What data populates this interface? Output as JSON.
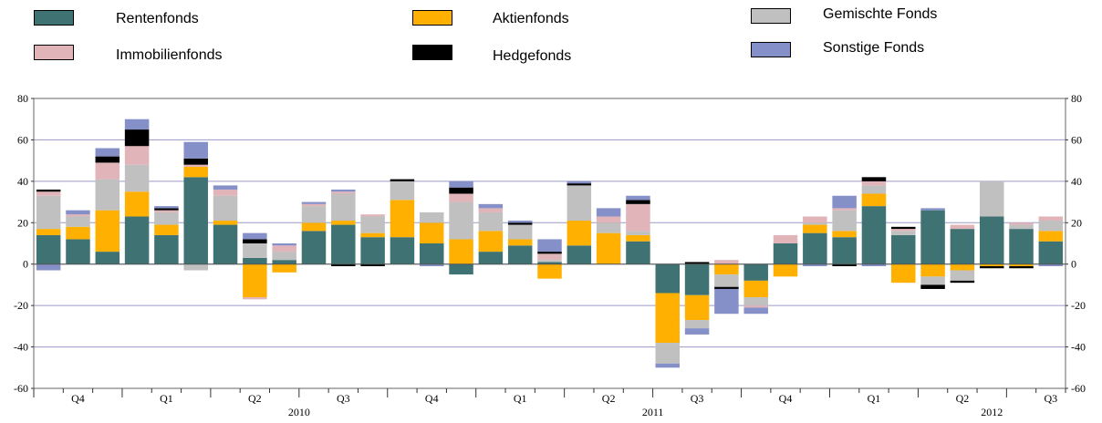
{
  "legend": {
    "items": [
      {
        "label": "Rentenfonds",
        "color": "#3f7373"
      },
      {
        "label": "Aktienfonds",
        "color": "#ffb000"
      },
      {
        "label": "Gemischte Fonds",
        "color": "#c0c0c0"
      },
      {
        "label": "Immobilienfonds",
        "color": "#e0b4b8"
      },
      {
        "label": "Hedgefonds",
        "color": "#000000"
      },
      {
        "label": "Sonstige Fonds",
        "color": "#8590c8"
      }
    ]
  },
  "chart_data": {
    "type": "bar",
    "stacked": true,
    "ylim": [
      -60,
      80
    ],
    "yticks": [
      -60,
      -40,
      -20,
      0,
      20,
      40,
      60,
      80
    ],
    "y_tick_labels": [
      "-60",
      "-40",
      "-20",
      "0",
      "20",
      "40",
      "60",
      "80"
    ],
    "grid": true,
    "legend_position": "top",
    "quarter_labels": [
      {
        "label": "Q4",
        "index": 1.5
      },
      {
        "label": "Q1",
        "index": 4.5
      },
      {
        "label": "Q2",
        "index": 7.5
      },
      {
        "label": "Q3",
        "index": 10.5
      },
      {
        "label": "Q4",
        "index": 13.5
      },
      {
        "label": "Q1",
        "index": 16.5
      },
      {
        "label": "Q2",
        "index": 19.5
      },
      {
        "label": "Q3",
        "index": 22.5
      },
      {
        "label": "Q4",
        "index": 25.5
      },
      {
        "label": "Q1",
        "index": 28.5
      },
      {
        "label": "Q2",
        "index": 31.5
      },
      {
        "label": "Q3",
        "index": 34.5
      }
    ],
    "year_labels": [
      {
        "label": "2010",
        "index": 9
      },
      {
        "label": "2011",
        "index": 21
      },
      {
        "label": "2012",
        "index": 32.5
      }
    ],
    "series": [
      {
        "name": "Rentenfonds",
        "color": "#3f7373",
        "values": [
          14,
          12,
          6,
          23,
          14,
          42,
          19,
          3,
          2,
          16,
          19,
          13,
          13,
          10,
          -5,
          6,
          9,
          1,
          9,
          0,
          11,
          -14,
          -15,
          0,
          -8,
          10,
          15,
          13,
          28,
          14,
          26,
          17,
          23,
          17,
          11
        ]
      },
      {
        "name": "Aktienfonds",
        "color": "#ffb000",
        "values": [
          3,
          6,
          20,
          12,
          5,
          5,
          2,
          -16,
          -4,
          4,
          2,
          2,
          18,
          10,
          12,
          10,
          3,
          -7,
          12,
          15,
          3,
          -24,
          -12,
          -5,
          -8,
          -6,
          4,
          3,
          6,
          -9,
          -6,
          -3,
          -1,
          -1,
          5
        ]
      },
      {
        "name": "Gemischte Fonds",
        "color": "#c0c0c0",
        "values": [
          16,
          5,
          15,
          13,
          6,
          -3,
          12,
          7,
          4,
          8,
          13,
          8,
          9,
          5,
          18,
          9,
          7,
          1,
          17,
          5,
          2,
          -10,
          -4,
          -6,
          -4,
          0,
          1,
          10,
          4,
          2,
          -4,
          -5,
          17,
          2,
          5
        ]
      },
      {
        "name": "Immobilienfonds",
        "color": "#e0b4b8",
        "values": [
          2,
          1,
          8,
          9,
          1,
          1,
          3,
          -1,
          3,
          1,
          1,
          1,
          0,
          0,
          4,
          2,
          0,
          3,
          0,
          3,
          13,
          0,
          0,
          2,
          -1,
          4,
          3,
          1,
          2,
          1,
          0,
          2,
          0,
          1,
          2
        ]
      },
      {
        "name": "Hedgefonds",
        "color": "#000000",
        "values": [
          1,
          0,
          3,
          8,
          1,
          3,
          0,
          2,
          0,
          0,
          -1,
          -1,
          1,
          0,
          3,
          0,
          1,
          1,
          1,
          0,
          2,
          0,
          1,
          -1,
          0,
          0,
          0,
          -1,
          2,
          1,
          -2,
          -1,
          -1,
          -1,
          0
        ]
      },
      {
        "name": "Sonstige Fonds",
        "color": "#8590c8",
        "values": [
          -3,
          2,
          4,
          5,
          1,
          8,
          2,
          3,
          1,
          1,
          1,
          0,
          0,
          -1,
          3,
          2,
          1,
          6,
          1,
          4,
          2,
          -2,
          -3,
          -12,
          -3,
          0,
          -1,
          6,
          -1,
          0,
          1,
          0,
          0,
          0,
          -1
        ]
      }
    ]
  }
}
